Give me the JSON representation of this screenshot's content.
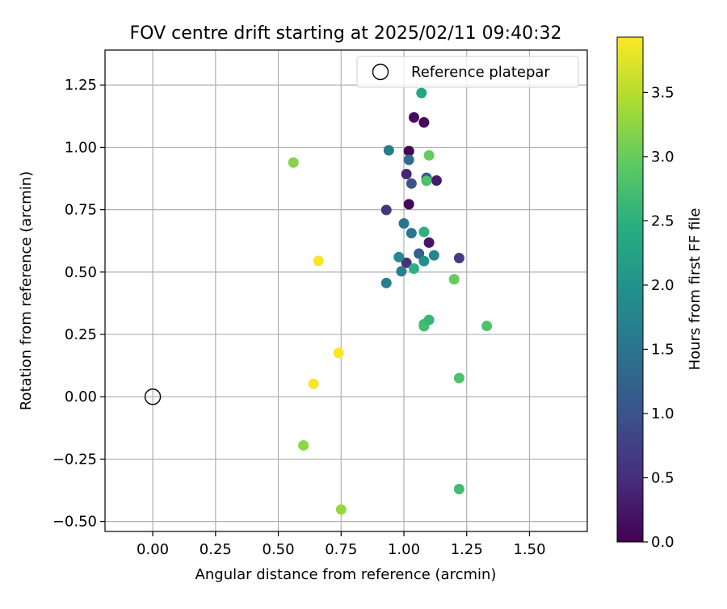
{
  "chart_data": {
    "type": "scatter",
    "title": "FOV centre drift starting at 2025/02/11 09:40:32",
    "xlabel": "Angular distance from reference (arcmin)",
    "ylabel": "Rotation from reference (arcmin)",
    "xlim": [
      -0.19,
      1.73
    ],
    "ylim": [
      -0.54,
      1.39
    ],
    "x_ticks": [
      0.0,
      0.25,
      0.5,
      0.75,
      1.0,
      1.25,
      1.5
    ],
    "x_tick_labels": [
      "0.00",
      "0.25",
      "0.50",
      "0.75",
      "1.00",
      "1.25",
      "1.50"
    ],
    "y_ticks": [
      -0.5,
      -0.25,
      0.0,
      0.25,
      0.5,
      0.75,
      1.0,
      1.25
    ],
    "y_tick_labels": [
      "−0.50",
      "−0.25",
      "0.00",
      "0.25",
      "0.50",
      "0.75",
      "1.00",
      "1.25"
    ],
    "grid": true,
    "legend": {
      "placement": "top-right",
      "entries": [
        {
          "label": "Reference platepar",
          "marker": "open-circle",
          "x": 0.0,
          "y": 0.0
        }
      ]
    },
    "colorbar": {
      "label": "Hours from first FF file",
      "colormap": "viridis",
      "range": [
        0.0,
        3.93
      ],
      "ticks": [
        0.0,
        0.5,
        1.0,
        1.5,
        2.0,
        2.5,
        3.0,
        3.5
      ],
      "tick_labels": [
        "0.0",
        "0.5",
        "1.0",
        "1.5",
        "2.0",
        "2.5",
        "3.0",
        "3.5"
      ]
    },
    "points": [
      {
        "x": 1.04,
        "y": 1.12,
        "hours": 0.15
      },
      {
        "x": 1.08,
        "y": 1.1,
        "hours": 0.1
      },
      {
        "x": 1.02,
        "y": 0.985,
        "hours": 0.05
      },
      {
        "x": 1.01,
        "y": 0.893,
        "hours": 0.4
      },
      {
        "x": 1.13,
        "y": 0.867,
        "hours": 0.3
      },
      {
        "x": 1.02,
        "y": 0.772,
        "hours": 0.08
      },
      {
        "x": 1.1,
        "y": 0.618,
        "hours": 0.25
      },
      {
        "x": 0.93,
        "y": 0.749,
        "hours": 0.6
      },
      {
        "x": 1.22,
        "y": 0.556,
        "hours": 0.7
      },
      {
        "x": 1.01,
        "y": 0.537,
        "hours": 0.55
      },
      {
        "x": 1.03,
        "y": 0.855,
        "hours": 1.0
      },
      {
        "x": 1.09,
        "y": 0.878,
        "hours": 1.1
      },
      {
        "x": 1.06,
        "y": 0.574,
        "hours": 1.2
      },
      {
        "x": 1.02,
        "y": 0.95,
        "hours": 1.4
      },
      {
        "x": 1.0,
        "y": 0.695,
        "hours": 1.5
      },
      {
        "x": 1.03,
        "y": 0.656,
        "hours": 1.55
      },
      {
        "x": 0.94,
        "y": 0.988,
        "hours": 1.65
      },
      {
        "x": 0.93,
        "y": 0.456,
        "hours": 1.7
      },
      {
        "x": 0.99,
        "y": 0.503,
        "hours": 1.75
      },
      {
        "x": 0.98,
        "y": 0.56,
        "hours": 1.85
      },
      {
        "x": 1.12,
        "y": 0.567,
        "hours": 1.8
      },
      {
        "x": 1.08,
        "y": 0.544,
        "hours": 1.95
      },
      {
        "x": 1.07,
        "y": 1.218,
        "hours": 2.3
      },
      {
        "x": 1.04,
        "y": 0.514,
        "hours": 2.5
      },
      {
        "x": 1.08,
        "y": 0.661,
        "hours": 2.5
      },
      {
        "x": 1.09,
        "y": 0.866,
        "hours": 2.8
      },
      {
        "x": 1.08,
        "y": 0.291,
        "hours": 2.6
      },
      {
        "x": 1.08,
        "y": 0.283,
        "hours": 2.7
      },
      {
        "x": 1.1,
        "y": 0.308,
        "hours": 2.6
      },
      {
        "x": 1.33,
        "y": 0.284,
        "hours": 2.8
      },
      {
        "x": 1.22,
        "y": 0.075,
        "hours": 2.8
      },
      {
        "x": 1.22,
        "y": -0.37,
        "hours": 2.7
      },
      {
        "x": 1.1,
        "y": 0.968,
        "hours": 3.0
      },
      {
        "x": 1.2,
        "y": 0.471,
        "hours": 3.0
      },
      {
        "x": 0.56,
        "y": 0.939,
        "hours": 3.2
      },
      {
        "x": 0.6,
        "y": -0.195,
        "hours": 3.25
      },
      {
        "x": 0.75,
        "y": -0.452,
        "hours": 3.3
      },
      {
        "x": 0.66,
        "y": 0.545,
        "hours": 3.9
      },
      {
        "x": 0.74,
        "y": 0.176,
        "hours": 3.9
      },
      {
        "x": 0.64,
        "y": 0.052,
        "hours": 3.9
      }
    ]
  }
}
